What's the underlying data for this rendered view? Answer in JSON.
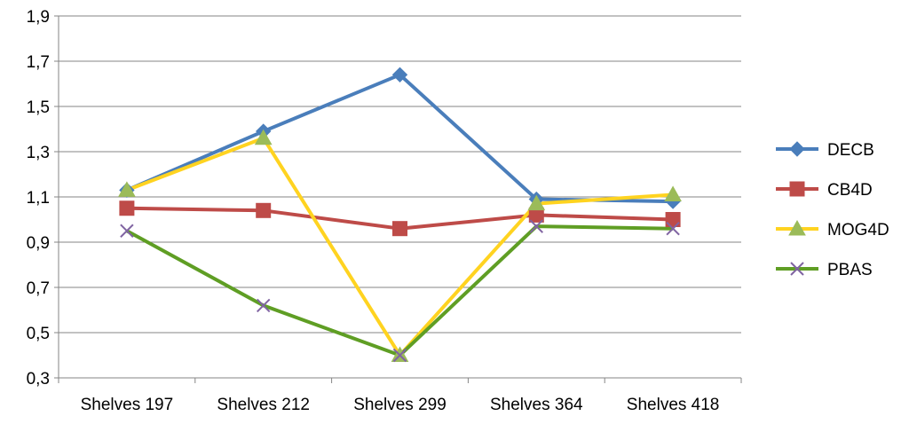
{
  "chart_data": {
    "type": "line",
    "categories": [
      "Shelves 197",
      "Shelves 212",
      "Shelves 299",
      "Shelves 364",
      "Shelves 418"
    ],
    "ylim": [
      0.3,
      1.9
    ],
    "yticks": [
      "0,3",
      "0,5",
      "0,7",
      "0,9",
      "1,1",
      "1,3",
      "1,5",
      "1,7",
      "1,9"
    ],
    "grid": true,
    "legend_position": "right",
    "series": [
      {
        "name": "DECB",
        "color": "#4a7ebb",
        "marker": "diamond",
        "values": [
          1.13,
          1.39,
          1.64,
          1.09,
          1.08
        ]
      },
      {
        "name": "CB4D",
        "color": "#be4b48",
        "marker": "square",
        "values": [
          1.05,
          1.04,
          0.96,
          1.02,
          1.0
        ]
      },
      {
        "name": "MOG4D",
        "color": "#ffd320",
        "marker": "triangle",
        "values": [
          1.13,
          1.36,
          0.4,
          1.07,
          1.11
        ]
      },
      {
        "name": "PBAS",
        "color": "#5f9e24",
        "marker": "cross",
        "values": [
          0.95,
          0.62,
          0.4,
          0.97,
          0.96
        ]
      }
    ]
  }
}
